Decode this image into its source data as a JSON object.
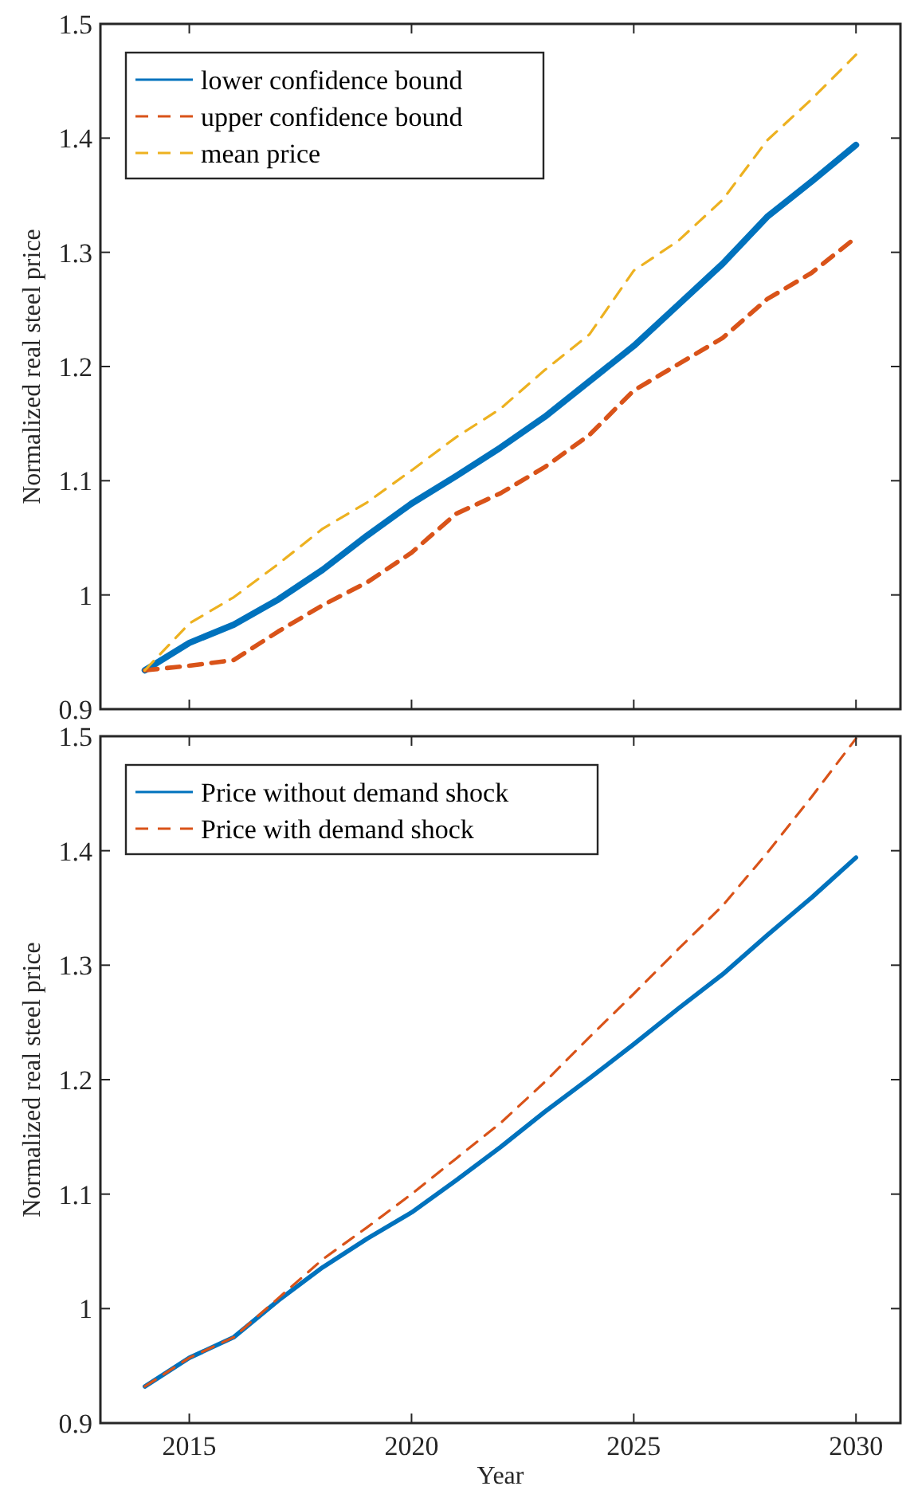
{
  "chart_data": [
    {
      "type": "line",
      "ylabel": "Normalized real steel price",
      "x": [
        2014,
        2015,
        2016,
        2017,
        2018,
        2019,
        2020,
        2021,
        2022,
        2023,
        2024,
        2025,
        2026,
        2027,
        2028,
        2029,
        2030
      ],
      "xlim": [
        2013,
        2031
      ],
      "xticks": [
        2015,
        2020,
        2025,
        2030
      ],
      "ylim": [
        0.9,
        1.5
      ],
      "yticks": [
        0.9,
        1,
        1.1,
        1.2,
        1.3,
        1.4,
        1.5
      ],
      "tick_labels": "y",
      "legend": "top left",
      "grid": false,
      "marker": "none",
      "series": [
        {
          "name": "lower confidence bound",
          "color": "#0072bd",
          "line_style": "solid",
          "values": [
            0.934,
            0.958,
            0.974,
            0.996,
            1.022,
            1.052,
            1.08,
            1.104,
            1.129,
            1.156,
            1.187,
            1.218,
            1.254,
            1.29,
            1.331,
            1.362,
            1.394
          ]
        },
        {
          "name": "upper confidence bound",
          "color": "#d95319",
          "line_style": "dashed",
          "values": [
            0.934,
            0.938,
            0.943,
            0.968,
            0.991,
            1.011,
            1.037,
            1.071,
            1.089,
            1.112,
            1.14,
            1.179,
            1.202,
            1.225,
            1.259,
            1.282,
            1.313
          ]
        },
        {
          "name": "mean price",
          "color": "#edb120",
          "line_style": "dashed",
          "values": [
            0.934,
            0.975,
            0.998,
            1.027,
            1.058,
            1.081,
            1.109,
            1.138,
            1.163,
            1.197,
            1.228,
            1.284,
            1.31,
            1.346,
            1.398,
            1.434,
            1.473
          ]
        }
      ]
    },
    {
      "type": "line",
      "xlabel": "Year",
      "ylabel": "Normalized real steel price",
      "x": [
        2014,
        2015,
        2016,
        2017,
        2018,
        2019,
        2020,
        2021,
        2022,
        2023,
        2024,
        2025,
        2026,
        2027,
        2028,
        2029,
        2030
      ],
      "xlim": [
        2013,
        2031
      ],
      "xticks": [
        2015,
        2020,
        2025,
        2030
      ],
      "ylim": [
        0.9,
        1.5
      ],
      "yticks": [
        0.9,
        1,
        1.1,
        1.2,
        1.3,
        1.4,
        1.5
      ],
      "legend": "top left",
      "grid": false,
      "marker": "none",
      "series": [
        {
          "name": "Price without demand shock",
          "color": "#0072bd",
          "line_style": "solid",
          "values": [
            0.932,
            0.957,
            0.975,
            1.007,
            1.036,
            1.061,
            1.084,
            1.112,
            1.141,
            1.172,
            1.201,
            1.231,
            1.262,
            1.292,
            1.326,
            1.359,
            1.394
          ]
        },
        {
          "name": "Price with demand shock",
          "color": "#d95319",
          "line_style": "dashed",
          "values": [
            0.932,
            0.957,
            0.975,
            1.009,
            1.043,
            1.071,
            1.1,
            1.131,
            1.162,
            1.198,
            1.237,
            1.275,
            1.314,
            1.352,
            1.398,
            1.447,
            1.498
          ]
        }
      ]
    }
  ]
}
